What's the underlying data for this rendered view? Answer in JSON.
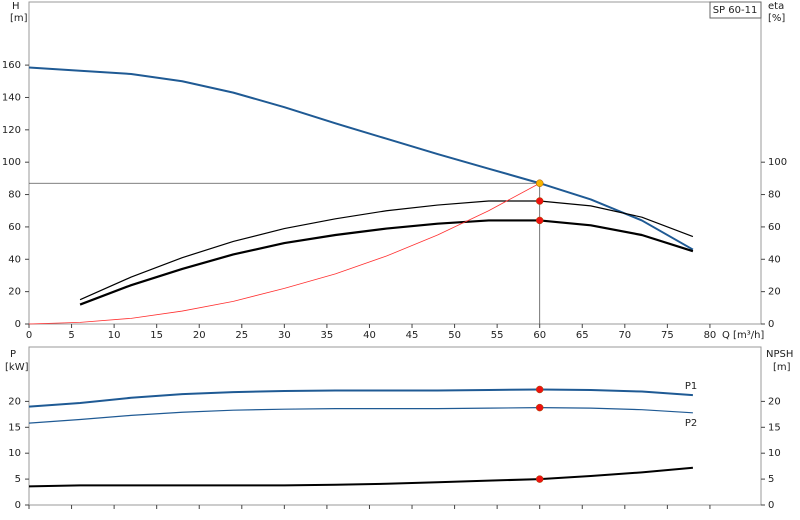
{
  "chart_data": [
    {
      "type": "line",
      "title": "SP 60-11",
      "y_label": "H",
      "y_unit": "[m]",
      "y2_label": "eta",
      "y2_unit": "[%]",
      "x_label": "Q [m³/h]",
      "xlim": [
        0,
        86
      ],
      "xticks": [
        0,
        5,
        10,
        15,
        20,
        25,
        30,
        35,
        40,
        45,
        50,
        55,
        60,
        65,
        70,
        75,
        80
      ],
      "ylim": [
        0,
        199
      ],
      "yticks": [
        0,
        20,
        40,
        60,
        80,
        100,
        120,
        140,
        160
      ],
      "y2lim": [
        0,
        199
      ],
      "y2ticks": [
        0,
        20,
        40,
        60,
        80,
        100
      ],
      "series": [
        {
          "color": "#1f5a94",
          "width": 2,
          "x": [
            0,
            6,
            12,
            18,
            24,
            30,
            36,
            42,
            48,
            54,
            60,
            66,
            72,
            78
          ],
          "values": [
            158.5,
            156.5,
            154.5,
            150,
            143,
            134,
            124,
            114.5,
            105,
            96,
            87,
            77,
            64,
            46
          ]
        },
        {
          "color": "#000000",
          "width": 1.2,
          "axis": "y2",
          "x": [
            6,
            12,
            18,
            24,
            30,
            36,
            42,
            48,
            54,
            60,
            66,
            72,
            78
          ],
          "values": [
            15,
            29,
            41,
            51,
            59,
            65,
            70,
            73.5,
            76,
            76,
            73,
            66,
            54
          ]
        },
        {
          "color": "#000000",
          "width": 2.2,
          "axis": "y2",
          "x": [
            6,
            12,
            18,
            24,
            30,
            36,
            42,
            48,
            54,
            60,
            66,
            72,
            78
          ],
          "values": [
            12,
            24,
            34,
            43,
            50,
            55,
            59,
            62,
            64,
            64,
            61,
            55,
            45
          ]
        },
        {
          "color": "#ff3030",
          "width": 0.8,
          "x": [
            0,
            6,
            12,
            18,
            24,
            30,
            36,
            42,
            48,
            54,
            60
          ],
          "values": [
            0,
            1,
            3.5,
            8,
            14,
            22,
            31,
            42,
            55,
            70,
            87
          ]
        }
      ],
      "guides": true,
      "markers": [
        {
          "x": 60,
          "y": 87,
          "color": "#f7b500"
        },
        {
          "x": 60,
          "y": 76,
          "color": "#ee1111"
        },
        {
          "x": 60,
          "y": 64,
          "color": "#ee1111"
        }
      ]
    },
    {
      "type": "line",
      "y_label": "P",
      "y_unit": "[kW]",
      "y2_label": "NPSH",
      "y2_unit": "[m]",
      "xlim": [
        0,
        86
      ],
      "ylim": [
        0,
        30.5
      ],
      "yticks": [
        0,
        5,
        10,
        15,
        20
      ],
      "y2lim": [
        0,
        30.5
      ],
      "y2ticks": [
        0,
        5,
        10,
        15,
        20
      ],
      "series": [
        {
          "name": "P1",
          "color": "#1f5a94",
          "width": 2,
          "x": [
            0,
            6,
            12,
            18,
            24,
            30,
            36,
            42,
            48,
            54,
            60,
            66,
            72,
            78
          ],
          "values": [
            19,
            19.7,
            20.7,
            21.4,
            21.8,
            22,
            22.1,
            22.1,
            22.1,
            22.2,
            22.3,
            22.2,
            21.9,
            21.2
          ]
        },
        {
          "name": "P2",
          "color": "#1f5a94",
          "width": 1.2,
          "x": [
            0,
            6,
            12,
            18,
            24,
            30,
            36,
            42,
            48,
            54,
            60,
            66,
            72,
            78
          ],
          "values": [
            15.8,
            16.5,
            17.3,
            17.9,
            18.3,
            18.5,
            18.6,
            18.6,
            18.6,
            18.7,
            18.8,
            18.7,
            18.4,
            17.8
          ]
        },
        {
          "color": "#000000",
          "width": 2,
          "axis": "y2",
          "x": [
            0,
            6,
            12,
            18,
            24,
            30,
            36,
            42,
            48,
            54,
            60,
            66,
            72,
            78
          ],
          "values": [
            3.6,
            3.8,
            3.8,
            3.8,
            3.8,
            3.8,
            3.9,
            4.1,
            4.4,
            4.7,
            5.0,
            5.6,
            6.3,
            7.2
          ]
        }
      ],
      "markers": [
        {
          "x": 60,
          "y": 22.3,
          "color": "#ee1111"
        },
        {
          "x": 60,
          "y": 18.8,
          "color": "#ee1111"
        },
        {
          "x": 60,
          "y": 5.0,
          "color": "#ee1111"
        }
      ]
    }
  ]
}
